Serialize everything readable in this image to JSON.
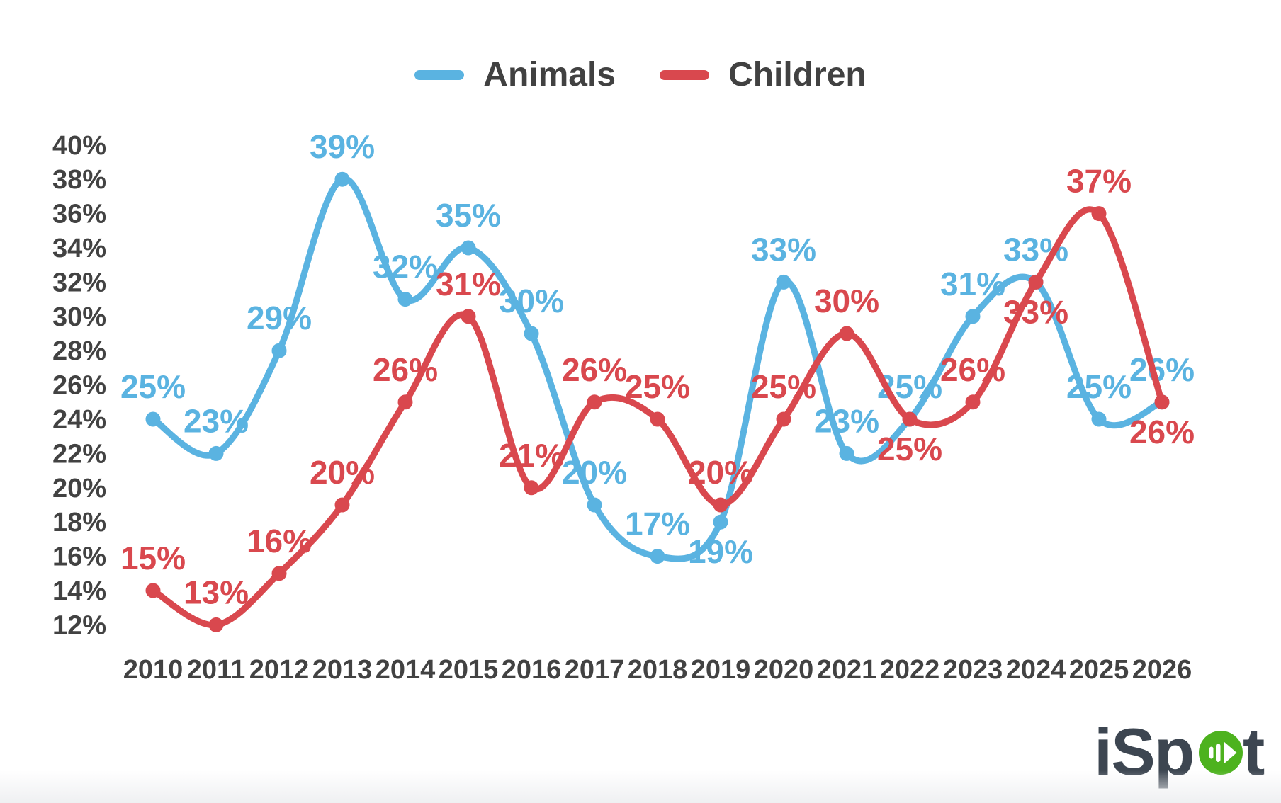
{
  "legend": {
    "items": [
      {
        "label": "Animals",
        "color": "#5ab3e1"
      },
      {
        "label": "Children",
        "color": "#d9484e"
      }
    ]
  },
  "chart_data": {
    "type": "line",
    "title": "",
    "x_labels": [
      "2010",
      "2011",
      "2012",
      "2013",
      "2014",
      "2015",
      "2016",
      "2017",
      "2018",
      "2019",
      "2020",
      "2021",
      "2022",
      "2023",
      "2024",
      "2025",
      "2026"
    ],
    "y_tick_labels": [
      "40%",
      "38%",
      "36%",
      "34%",
      "32%",
      "30%",
      "28%",
      "26%",
      "24%",
      "22%",
      "20%",
      "18%",
      "16%",
      "14%",
      "12%"
    ],
    "ylim": [
      12,
      40
    ],
    "grid": false,
    "legend_position": "top-center",
    "label_suffix": "%",
    "axis_text_color": "#424242",
    "series": [
      {
        "name": "Animals",
        "color": "#5ab3e1",
        "values": [
          25,
          23,
          29,
          39,
          32,
          35,
          30,
          20,
          17,
          19,
          33,
          23,
          25,
          31,
          33,
          25,
          26
        ],
        "labels_below_years": [
          "2019"
        ]
      },
      {
        "name": "Children",
        "color": "#d9484e",
        "values": [
          15,
          13,
          16,
          20,
          26,
          31,
          21,
          26,
          25,
          20,
          25,
          30,
          25,
          26,
          33,
          37,
          26
        ],
        "labels_below_years": [
          "2022",
          "2024",
          "2026"
        ]
      }
    ]
  },
  "watermark": {
    "text_before_icon": "iSp",
    "text_after_icon": "t",
    "icon": "play-circle-icon",
    "text_color": "#3d4651",
    "icon_color": "#4db21e"
  }
}
